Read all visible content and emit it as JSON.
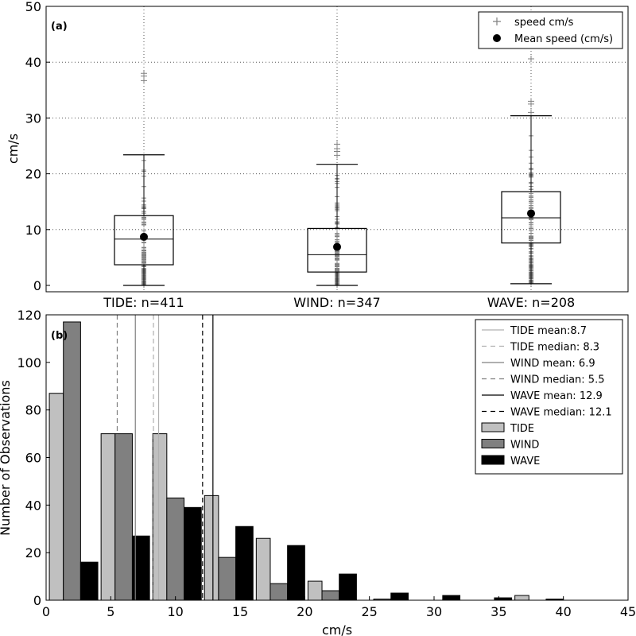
{
  "chart_data": [
    {
      "type": "box",
      "panel_label": "(a)",
      "ylabel": "cm/s",
      "ylim": [
        0,
        50
      ],
      "yticks": [
        0,
        10,
        20,
        30,
        40,
        50
      ],
      "grid": true,
      "legend_position": "top-right",
      "legend": [
        {
          "label": "speed cm/s",
          "marker": "plus",
          "color": "#808080"
        },
        {
          "label": "Mean speed (cm/s)",
          "marker": "dot",
          "color": "#000000"
        }
      ],
      "categories": [
        "TIDE: n=411",
        "WIND: n=347",
        "WAVE: n=208"
      ],
      "boxes": [
        {
          "name": "TIDE",
          "n": 411,
          "q1": 3.7,
          "median": 8.3,
          "q3": 12.5,
          "whisker_low": 0.0,
          "whisker_high": 23.4,
          "mean": 8.7,
          "outliers": [
            36.7,
            37.5,
            38.0
          ]
        },
        {
          "name": "WIND",
          "n": 347,
          "q1": 2.4,
          "median": 5.5,
          "q3": 10.2,
          "whisker_low": 0.0,
          "whisker_high": 21.7,
          "mean": 6.9,
          "outliers": [
            23.3,
            24.0,
            24.5,
            25.3
          ]
        },
        {
          "name": "WAVE",
          "n": 208,
          "q1": 7.6,
          "median": 12.1,
          "q3": 16.8,
          "whisker_low": 0.3,
          "whisker_high": 30.4,
          "mean": 12.9,
          "outliers": [
            31.0,
            32.5,
            33.0,
            40.6
          ]
        }
      ]
    },
    {
      "type": "bar",
      "panel_label": "(b)",
      "xlabel": "cm/s",
      "ylabel": "Number of Observations",
      "xlim": [
        0,
        45
      ],
      "ylim": [
        0,
        120
      ],
      "xticks": [
        0,
        5,
        10,
        15,
        20,
        25,
        30,
        35,
        40,
        45
      ],
      "yticks": [
        0,
        20,
        40,
        60,
        80,
        100,
        120
      ],
      "legend_position": "top-right",
      "bin_starts": [
        0,
        4,
        8,
        12,
        16,
        20,
        24,
        28,
        32,
        36
      ],
      "series": [
        {
          "name": "TIDE",
          "color": "#c0c0c0",
          "values": [
            87,
            70,
            70,
            44,
            26,
            8,
            0,
            0,
            0,
            2
          ]
        },
        {
          "name": "WIND",
          "color": "#808080",
          "values": [
            117,
            70,
            43,
            18,
            7,
            4,
            0.5,
            0,
            0,
            0
          ]
        },
        {
          "name": "WAVE",
          "color": "#000000",
          "values": [
            16,
            27,
            39,
            31,
            23,
            11,
            3,
            2,
            1,
            0.5
          ]
        }
      ],
      "reference_lines": [
        {
          "label": "TIDE mean:8.7",
          "x": 8.7,
          "color": "#b0b0b0",
          "style": "solid"
        },
        {
          "label": "TIDE median: 8.3",
          "x": 8.3,
          "color": "#b0b0b0",
          "style": "dashed"
        },
        {
          "label": "WIND mean: 6.9",
          "x": 6.9,
          "color": "#808080",
          "style": "solid"
        },
        {
          "label": "WIND median: 5.5",
          "x": 5.5,
          "color": "#808080",
          "style": "dashed"
        },
        {
          "label": "WAVE mean: 12.9",
          "x": 12.9,
          "color": "#000000",
          "style": "solid"
        },
        {
          "label": "WAVE median: 12.1",
          "x": 12.1,
          "color": "#000000",
          "style": "dashed"
        }
      ]
    }
  ]
}
